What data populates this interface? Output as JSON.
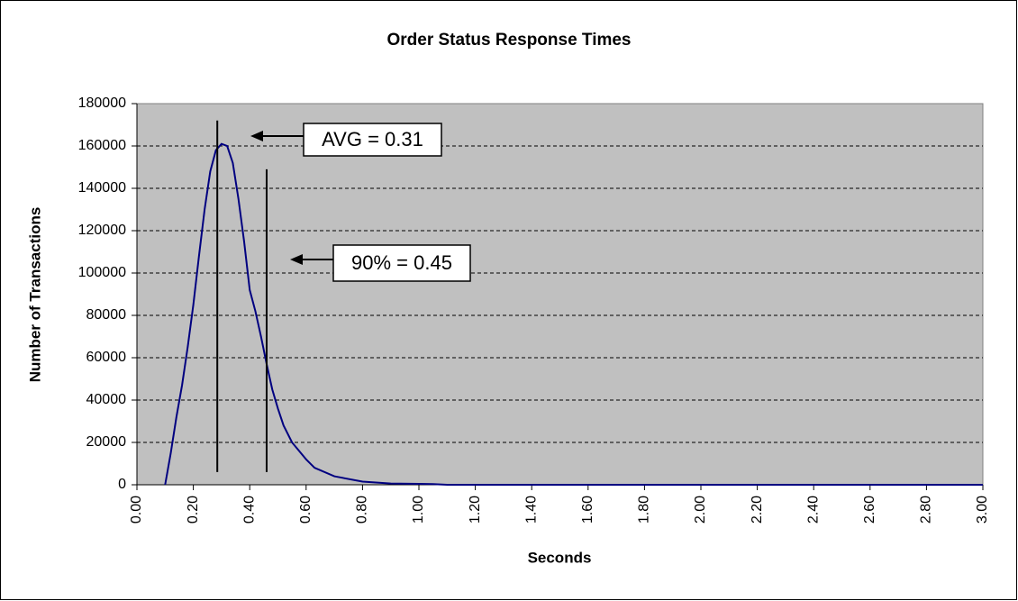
{
  "chart_data": {
    "type": "line",
    "title": "Order Status Response Times",
    "xlabel": "Seconds",
    "ylabel": "Number of Transactions",
    "x": [
      0.1,
      0.12,
      0.14,
      0.16,
      0.18,
      0.2,
      0.22,
      0.24,
      0.26,
      0.28,
      0.3,
      0.32,
      0.34,
      0.36,
      0.38,
      0.4,
      0.42,
      0.44,
      0.46,
      0.48,
      0.5,
      0.52,
      0.55,
      0.6,
      0.63,
      0.7,
      0.8,
      0.9,
      1.0,
      1.05,
      1.1,
      3.0
    ],
    "series": [
      {
        "name": "Order Status",
        "color": "#000080",
        "values": [
          0,
          15000,
          32000,
          47000,
          65000,
          85000,
          108000,
          130000,
          148000,
          158000,
          161000,
          160000,
          152000,
          135000,
          115000,
          92000,
          82000,
          70000,
          57000,
          45000,
          36000,
          28000,
          20000,
          12000,
          8000,
          4000,
          1500,
          600,
          400,
          300,
          0,
          0
        ]
      }
    ],
    "xlim": [
      0,
      3
    ],
    "xticks": [
      {
        "value": 0,
        "label": "0.00"
      },
      {
        "value": 0.2,
        "label": "0.20"
      },
      {
        "value": 0.4,
        "label": "0.40"
      },
      {
        "value": 0.6,
        "label": "0.60"
      },
      {
        "value": 0.8,
        "label": "0.80"
      },
      {
        "value": 1,
        "label": "1.00"
      },
      {
        "value": 1.2,
        "label": "1.20"
      },
      {
        "value": 1.4,
        "label": "1.40"
      },
      {
        "value": 1.6,
        "label": "1.60"
      },
      {
        "value": 1.8,
        "label": "1.80"
      },
      {
        "value": 2,
        "label": "2.00"
      },
      {
        "value": 2.2,
        "label": "2.20"
      },
      {
        "value": 2.4,
        "label": "2.40"
      },
      {
        "value": 2.6,
        "label": "2.60"
      },
      {
        "value": 2.8,
        "label": "2.80"
      },
      {
        "value": 3,
        "label": "3.00"
      }
    ],
    "ylim": [
      0,
      180000
    ],
    "yticks": [
      0,
      20000,
      40000,
      60000,
      80000,
      100000,
      120000,
      140000,
      160000,
      180000
    ],
    "grid": true,
    "annotations": [
      {
        "text": "AVG = 0.31",
        "x": 0.285,
        "y_from": 6000,
        "y_to": 172000
      },
      {
        "text": "90% = 0.45",
        "x": 0.46,
        "y_from": 6000,
        "y_to": 149000
      }
    ]
  }
}
